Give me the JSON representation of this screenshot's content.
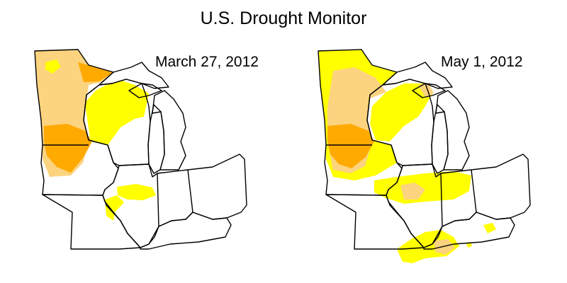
{
  "title": "U.S. Drought Monitor",
  "maps": [
    {
      "date": "March 27, 2012"
    },
    {
      "date": "May 1, 2012"
    }
  ],
  "colors": {
    "abnormally_dry": "#ffff00",
    "moderate_drought": "#fcd37f",
    "severe_drought": "#ffaa00",
    "background": "#ffffff",
    "borders": "#000000"
  }
}
